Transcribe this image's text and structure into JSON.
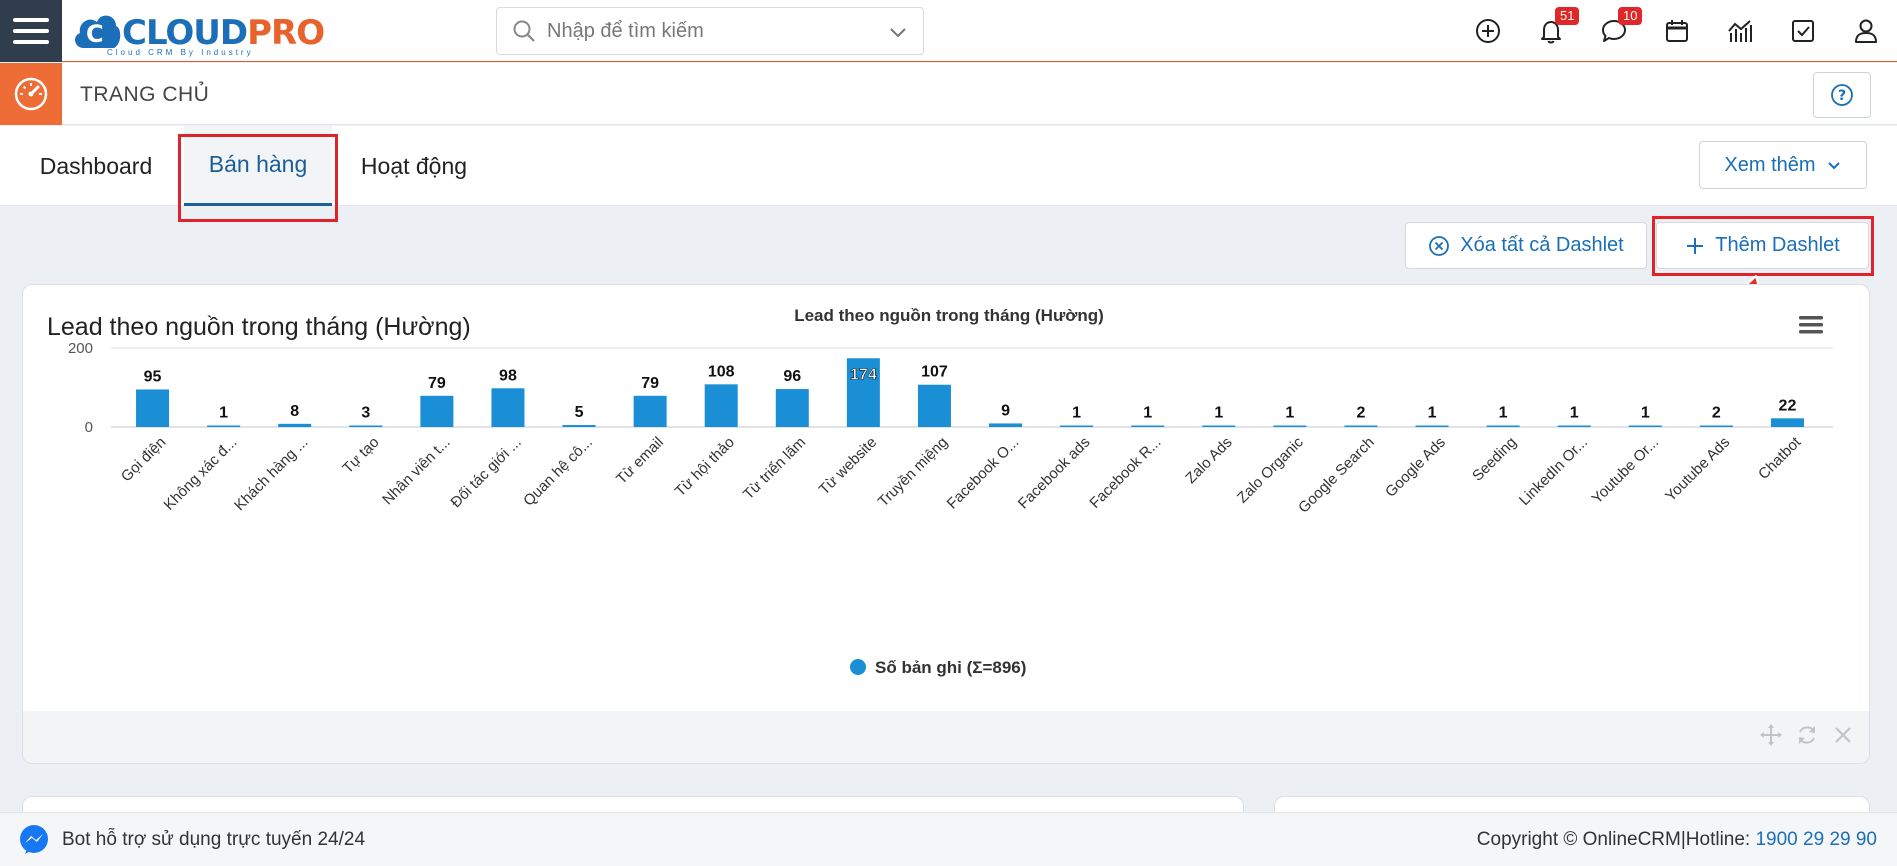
{
  "header": {
    "logo_text_a": "CLOUD",
    "logo_text_b": "PRO",
    "logo_sub": "Cloud CRM By Industry",
    "search_placeholder": "Nhập để tìm kiếm",
    "notifications_count": "51",
    "messages_count": "10",
    "icons": [
      "plus-circle-icon",
      "bell-icon",
      "chat-icon",
      "calendar-icon",
      "chart-icon",
      "checkbox-icon",
      "user-icon"
    ]
  },
  "pagebar": {
    "title": "TRANG CHỦ"
  },
  "tabs": [
    {
      "label": "Dashboard"
    },
    {
      "label": "Bán hàng"
    },
    {
      "label": "Hoạt động"
    }
  ],
  "more_label": "Xem thêm",
  "actions": {
    "clear_label": "Xóa tất cả Dashlet",
    "add_label": "Thêm Dashlet"
  },
  "dashlet": {
    "title": "Lead theo nguồn trong tháng (Hường)"
  },
  "chart_data": {
    "type": "bar",
    "title": "Lead theo nguồn trong tháng (Hường)",
    "categories": [
      "Gọi điện",
      "Không xác đ...",
      "Khách hàng ...",
      "Tự tạo",
      "Nhân viên t...",
      "Đối tác giới ...",
      "Quan hệ cô...",
      "Từ email",
      "Từ hội thảo",
      "Từ triển lãm",
      "Từ website",
      "Truyền miệng",
      "Facebook O...",
      "Facebook ads",
      "Facebook R...",
      "Zalo Ads",
      "Zalo Organic",
      "Google Search",
      "Google Ads",
      "Seeding",
      "LinkedIn Or...",
      "Youtube Or...",
      "Youtube Ads",
      "Chatbot"
    ],
    "series": [
      {
        "name": "Số bản ghi (Σ=896)",
        "values": [
          95,
          1,
          8,
          3,
          79,
          98,
          5,
          79,
          108,
          96,
          174,
          107,
          9,
          1,
          1,
          1,
          1,
          2,
          1,
          1,
          1,
          1,
          2,
          22
        ]
      }
    ],
    "ylim": [
      0,
      200
    ],
    "yticks": [
      "0",
      "200"
    ],
    "grid": true,
    "legend": "bottom-center",
    "color": "#1a8fd6"
  },
  "footer": {
    "bot_text": "Bot hỗ trợ sử dụng trực tuyến 24/24",
    "copyright": "Copyright © OnlineCRM|Hotline: ",
    "hotline": "1900 29 29 90"
  }
}
